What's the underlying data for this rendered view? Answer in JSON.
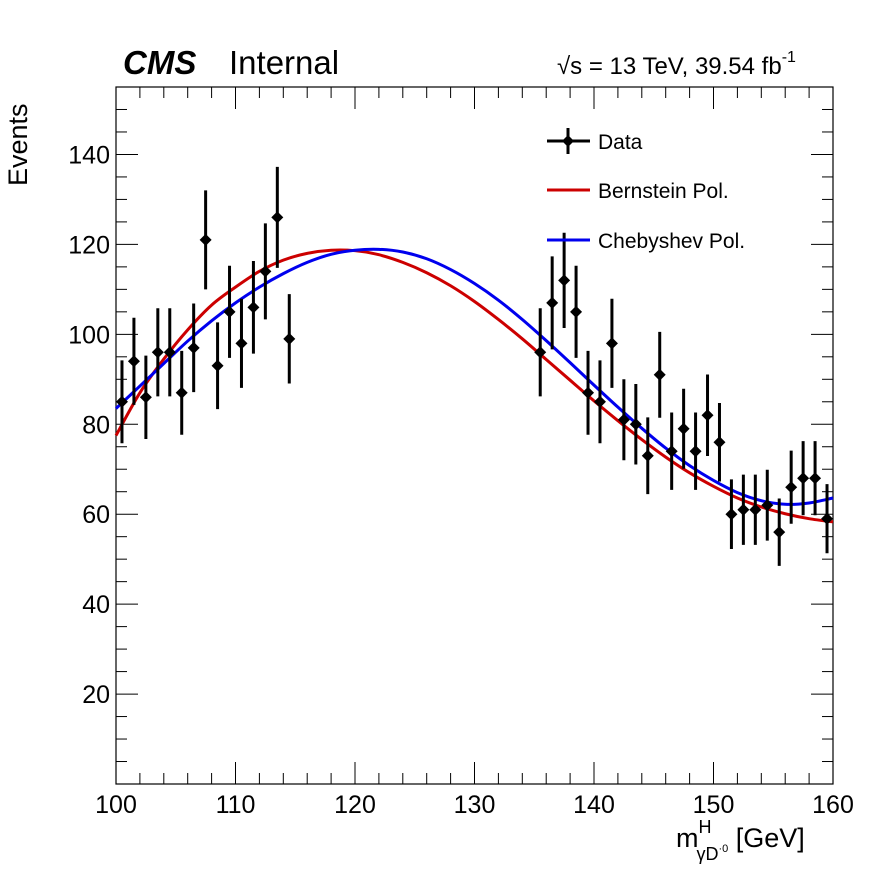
{
  "header": {
    "experiment": "CMS",
    "status": "Internal",
    "lumi_label": "√s = 13 TeV, 39.54 fb",
    "lumi_superscript": "-1"
  },
  "chart_data": {
    "type": "scatter",
    "xlabel_main": "m",
    "xlabel_sup": "H",
    "xlabel_sub": "γD",
    "xlabel_subsup": "·0",
    "xlabel_unit": " [GeV]",
    "ylabel": "Events",
    "xlim": [
      100,
      160
    ],
    "ylim": [
      0,
      155
    ],
    "x_ticks": [
      100,
      110,
      120,
      130,
      140,
      150,
      160
    ],
    "y_ticks": [
      20,
      40,
      60,
      80,
      100,
      120,
      140
    ],
    "grid": false,
    "legend_position": "top-right",
    "legend": [
      {
        "label": "Data",
        "kind": "data",
        "color": "#000000"
      },
      {
        "label": "Bernstein Pol.",
        "kind": "line",
        "color": "#cc0000"
      },
      {
        "label": "Chebyshev Pol.",
        "kind": "line",
        "color": "#0000ee"
      }
    ],
    "data_points": {
      "x": [
        100.5,
        101.5,
        102.5,
        103.5,
        104.5,
        105.5,
        106.5,
        107.5,
        108.5,
        109.5,
        110.5,
        111.5,
        112.5,
        113.5,
        114.5,
        135.5,
        136.5,
        137.5,
        138.5,
        139.5,
        140.5,
        141.5,
        142.5,
        143.5,
        144.5,
        145.5,
        146.5,
        147.5,
        148.5,
        149.5,
        150.5,
        151.5,
        152.5,
        153.5,
        154.5,
        155.5,
        156.5,
        157.5,
        158.5,
        159.5
      ],
      "y": [
        85,
        94,
        86,
        96,
        96,
        87,
        97,
        121,
        93,
        105,
        98,
        106,
        114,
        126,
        99,
        96,
        107,
        112,
        105,
        87,
        85,
        98,
        81,
        80,
        73,
        91,
        74,
        79,
        74,
        82,
        76,
        60,
        61,
        61,
        62,
        56,
        66,
        68,
        68,
        59
      ]
    },
    "series": [
      {
        "name": "Bernstein Pol.",
        "color": "#cc0000",
        "x": [
          100,
          102,
          104,
          106,
          108,
          110,
          112,
          114,
          116,
          118,
          120,
          122,
          124,
          126,
          128,
          130,
          132,
          134,
          136,
          138,
          140,
          142,
          144,
          146,
          148,
          150,
          152,
          154,
          156,
          158,
          160
        ],
        "y": [
          77.5,
          87,
          94.5,
          101,
          106.5,
          110.5,
          114,
          116.5,
          118,
          118.7,
          118.6,
          117.7,
          116,
          113.7,
          110.8,
          107.3,
          103.3,
          99,
          94.4,
          89.8,
          85.2,
          80.8,
          76.6,
          72.7,
          69.2,
          66.2,
          63.6,
          61.6,
          60.1,
          59,
          58.3
        ]
      },
      {
        "name": "Chebyshev Pol.",
        "color": "#0000ee",
        "x": [
          100,
          102,
          104,
          106,
          108,
          110,
          112,
          114,
          116,
          118,
          120,
          122,
          124,
          126,
          128,
          130,
          132,
          134,
          136,
          138,
          140,
          142,
          144,
          146,
          148,
          150,
          152,
          154,
          156,
          158,
          160
        ],
        "y": [
          83.5,
          88.5,
          93.5,
          98.5,
          103,
          107,
          110.5,
          113.5,
          116,
          117.8,
          118.7,
          118.9,
          118.3,
          116.8,
          114.4,
          111.3,
          107.6,
          103.3,
          98.6,
          93.7,
          88.7,
          83.8,
          79.1,
          74.7,
          70.8,
          67.5,
          64.8,
          63,
          62.2,
          62.5,
          63.6
        ]
      }
    ]
  }
}
